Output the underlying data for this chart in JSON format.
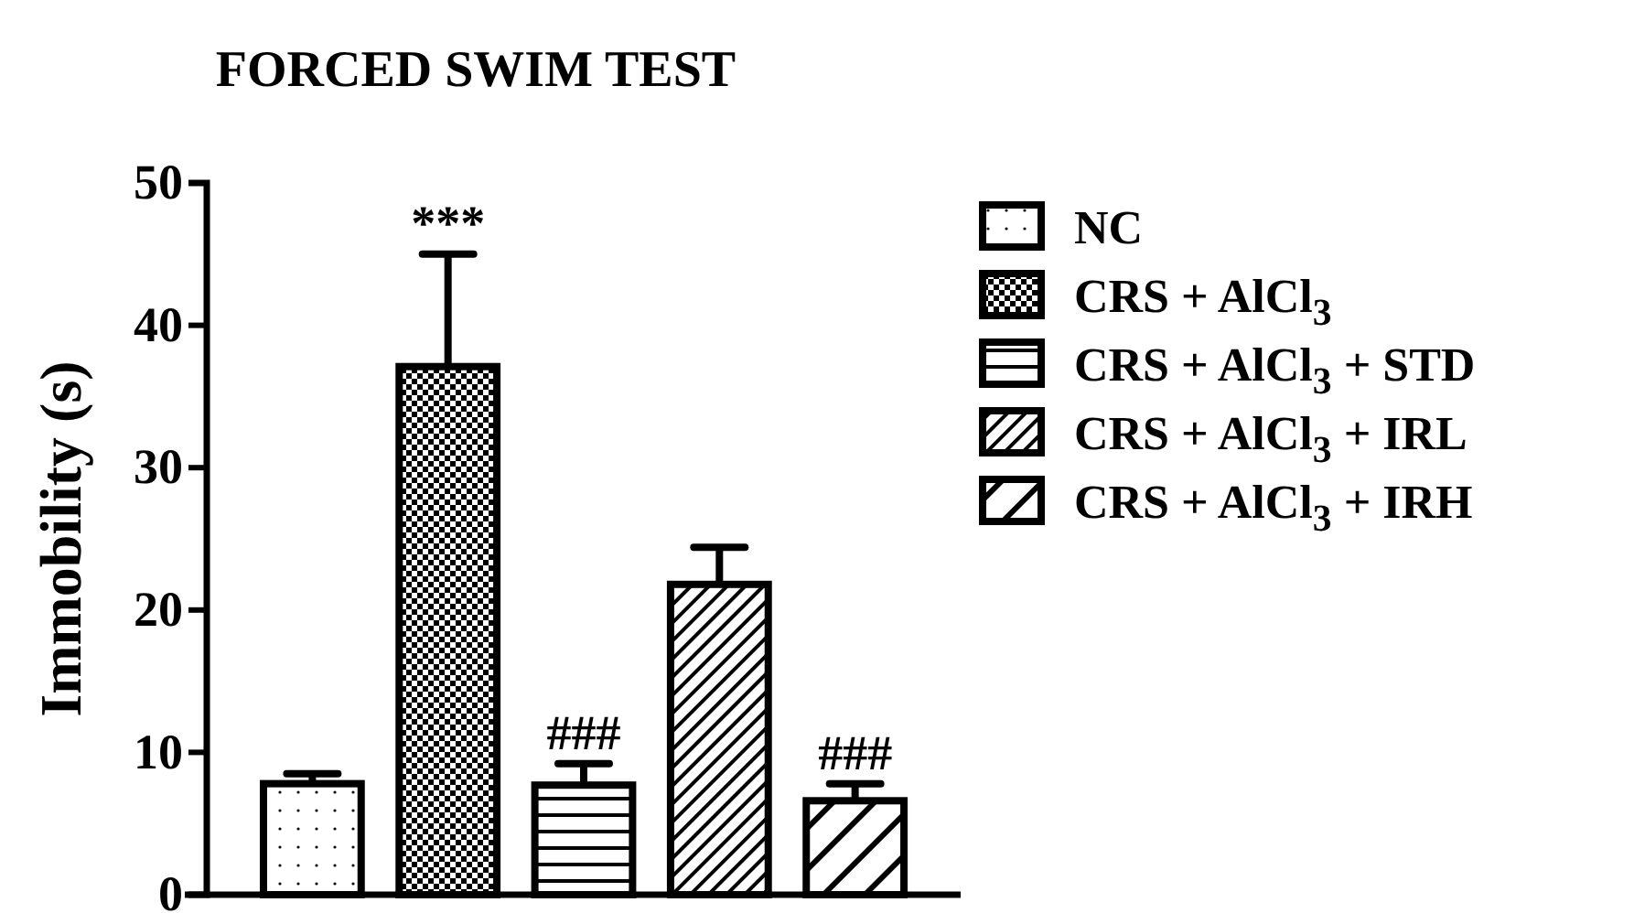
{
  "chart_data": {
    "type": "bar",
    "title": "FORCED SWIM TEST",
    "ylabel": "Immobility (s)",
    "categories": [
      null
    ],
    "series": [
      {
        "name": "NC",
        "color": "#000000",
        "values": [
          7.8
        ],
        "errors": [
          0.7
        ]
      },
      {
        "name": "CRS + AlCl$_{3}$",
        "color": "#000000",
        "values": [
          37.1
        ],
        "errors": [
          7.9
        ]
      },
      {
        "name": "CRS + AlCl$_{3}$ + STD",
        "color": "#000000",
        "values": [
          7.7
        ],
        "errors": [
          1.5
        ]
      },
      {
        "name": "CRS + AlCl$_{3}$ + IRL",
        "color": "#000000",
        "values": [
          21.8
        ],
        "errors": [
          2.6
        ]
      },
      {
        "name": "CRS + AlCl$_{3}$ + IRH",
        "color": "#000000",
        "values": [
          6.6
        ],
        "errors": [
          1.2
        ]
      }
    ],
    "annotations": [
      {
        "text": "***",
        "y": 45.0
      },
      {
        "text": "###",
        "y": 9.2
      },
      {
        "text": "###",
        "y": 7.8
      }
    ],
    "ylim": [
      0,
      50
    ],
    "yticks": [
      0,
      10,
      20,
      30,
      40,
      50
    ],
    "grid": false,
    "legend": "right"
  }
}
